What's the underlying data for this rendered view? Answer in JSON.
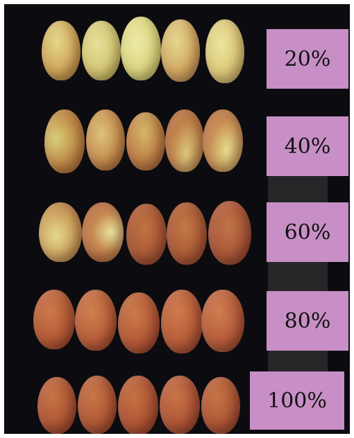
{
  "labels": {
    "l20": "20%",
    "l40": "40%",
    "l60": "60%",
    "l80": "80%",
    "l100": "100%"
  },
  "colors": {
    "background": "#0c0c10",
    "label_fill": "#c78fc6",
    "ripe_red": "#b54a2a",
    "unripe_yellow": "#d8d37a"
  }
}
